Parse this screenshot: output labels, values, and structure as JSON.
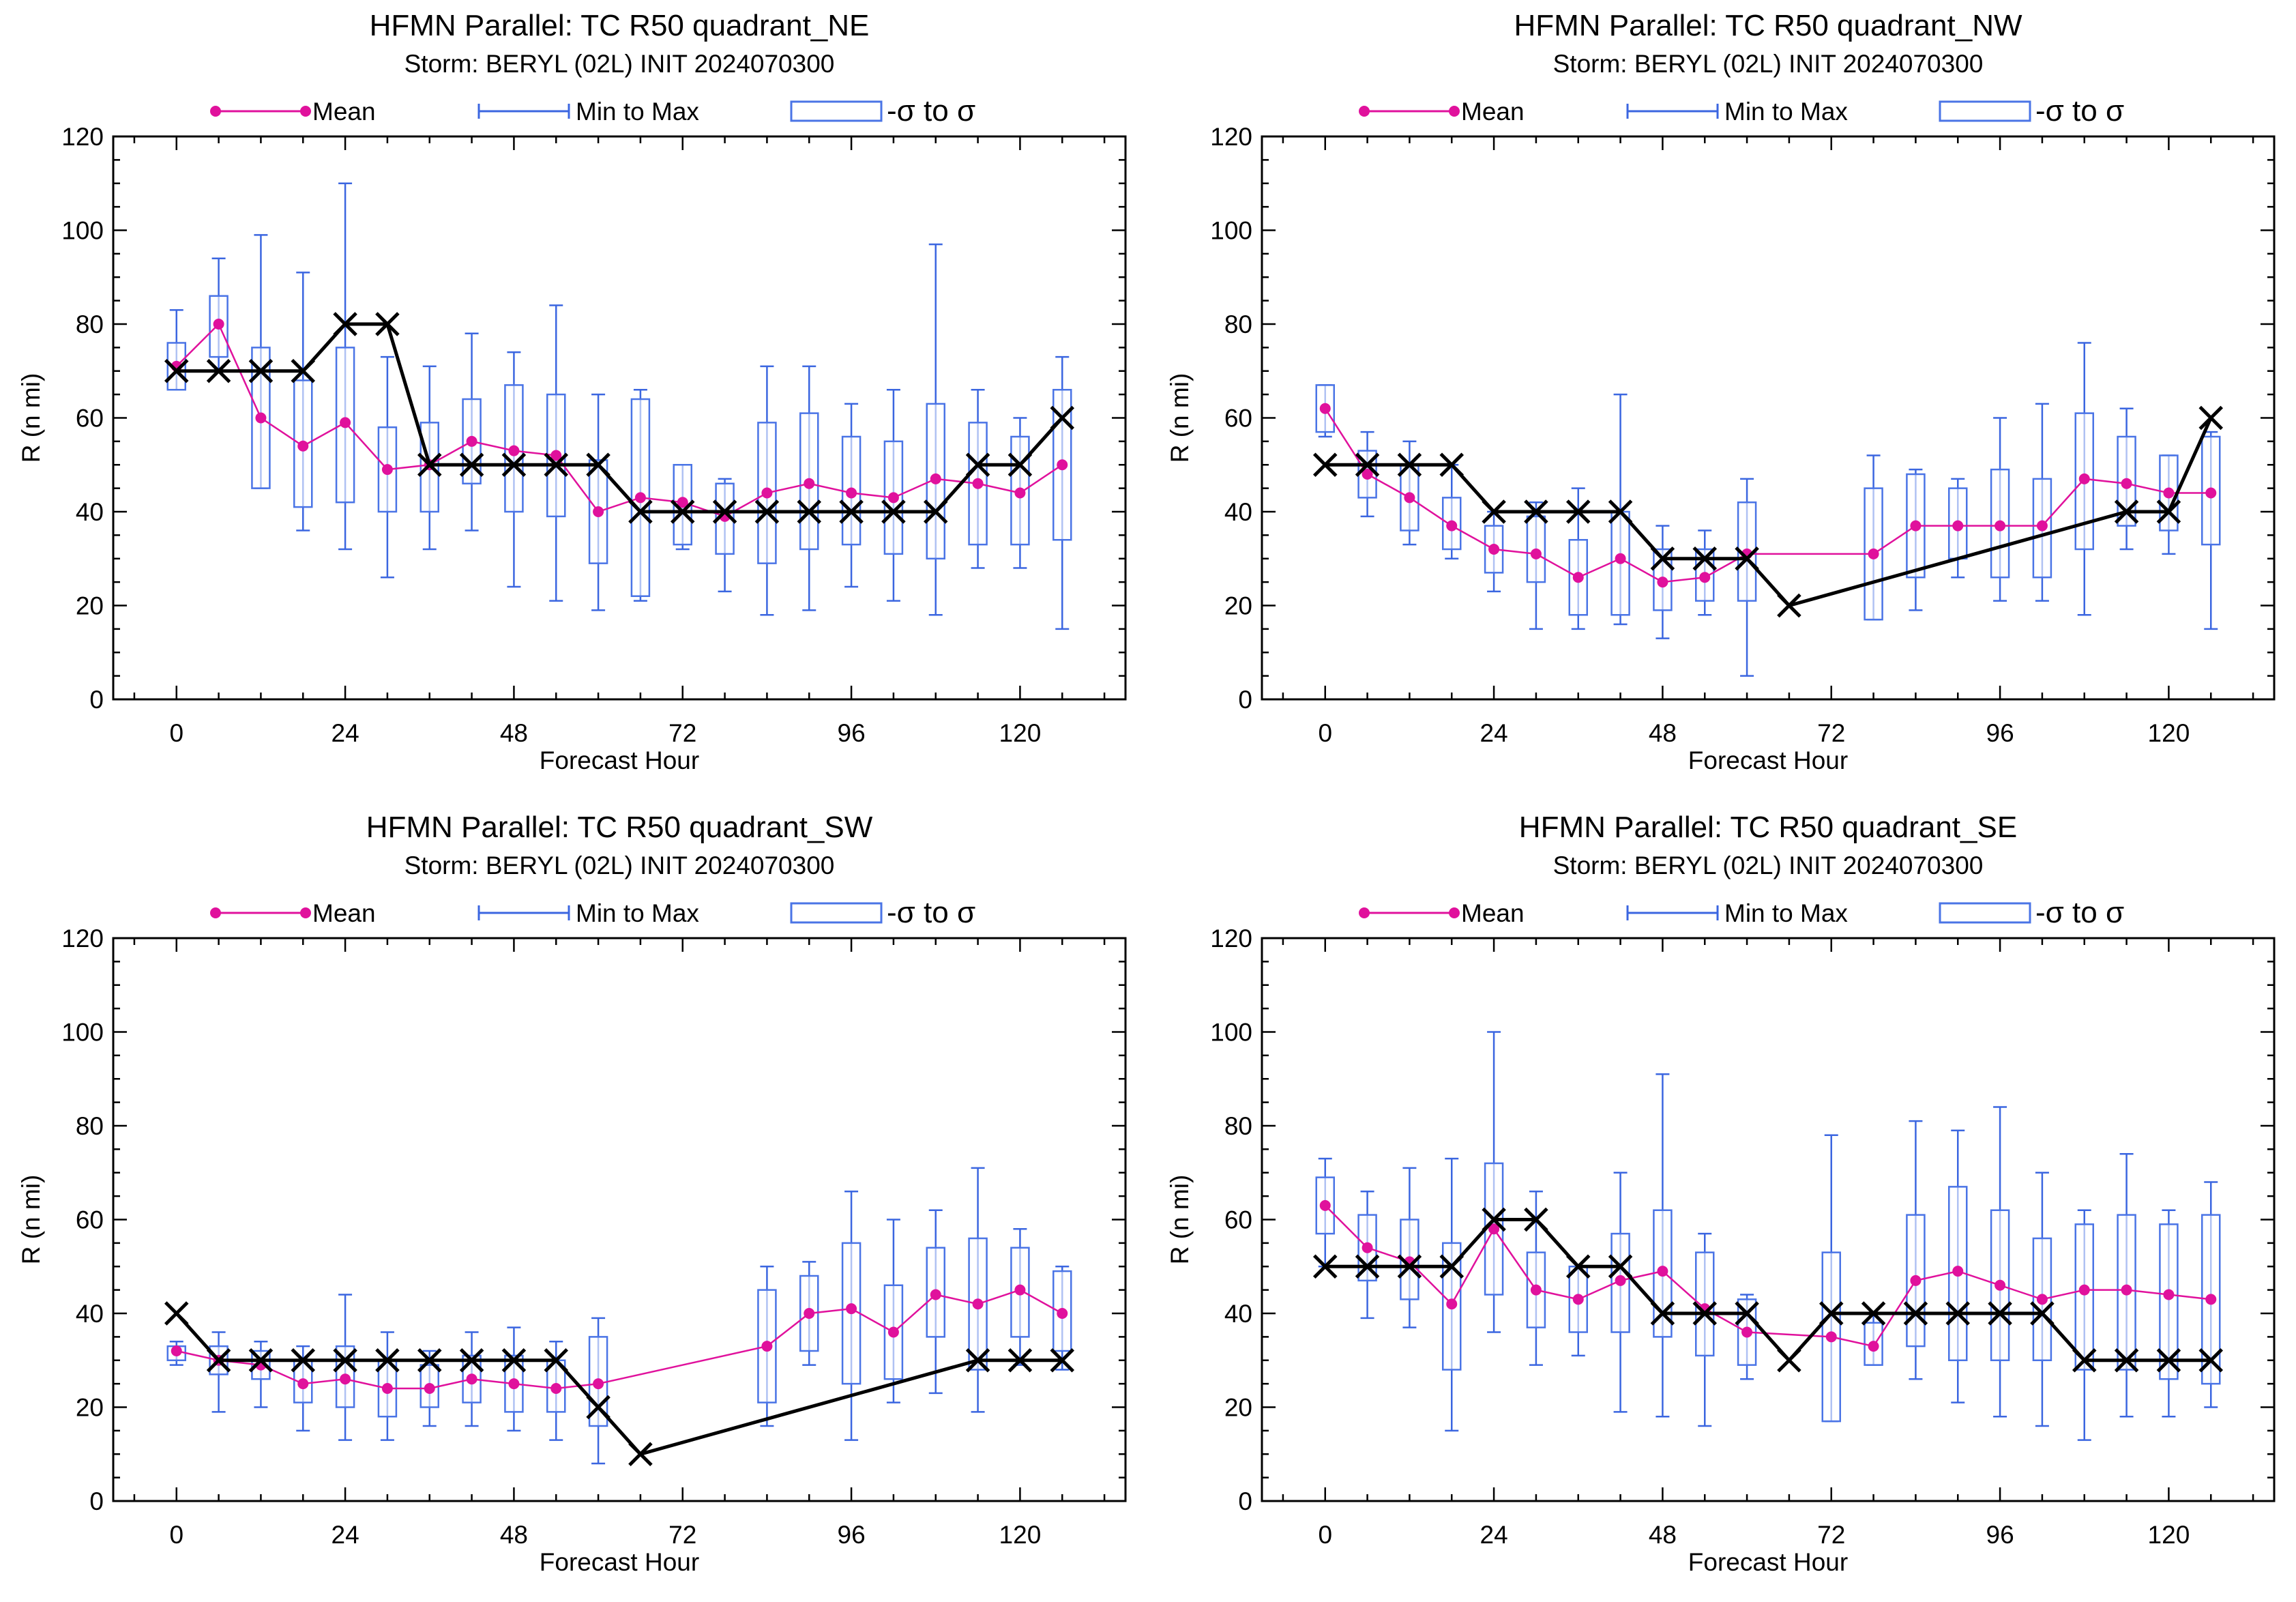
{
  "colors": {
    "mean": "#e0119c",
    "minmax": "#3b66e0",
    "box": "#4a74e6",
    "best_track": "#000000",
    "axes": "#000000"
  },
  "legend": {
    "mean": "Mean",
    "minmax": "Min to Max",
    "sigma": "-σ to σ"
  },
  "chart_data": [
    {
      "type": "box",
      "title": "HFMN Parallel: TC  R50 quadrant_NE",
      "subtitle": "Storm: BERYL (02L) INIT 2024070300",
      "xlabel": "Forecast Hour",
      "ylabel": "R (n mi)",
      "xlim": [
        -9,
        135
      ],
      "ylim": [
        0,
        120
      ],
      "xticks": [
        0,
        24,
        48,
        72,
        96,
        120
      ],
      "yticks": [
        0,
        20,
        40,
        60,
        80,
        100,
        120
      ],
      "stats": [
        {
          "x": 0,
          "mean": 71,
          "min": 66,
          "max": 83,
          "lo": 66,
          "hi": 76
        },
        {
          "x": 6,
          "mean": 80,
          "min": 70,
          "max": 94,
          "lo": 73,
          "hi": 86
        },
        {
          "x": 12,
          "mean": 60,
          "min": 45,
          "max": 99,
          "lo": 45,
          "hi": 75
        },
        {
          "x": 18,
          "mean": 54,
          "min": 36,
          "max": 91,
          "lo": 41,
          "hi": 68
        },
        {
          "x": 24,
          "mean": 59,
          "min": 32,
          "max": 110,
          "lo": 42,
          "hi": 75
        },
        {
          "x": 30,
          "mean": 49,
          "min": 26,
          "max": 73,
          "lo": 40,
          "hi": 58
        },
        {
          "x": 36,
          "mean": 50,
          "min": 32,
          "max": 71,
          "lo": 40,
          "hi": 59
        },
        {
          "x": 42,
          "mean": 55,
          "min": 36,
          "max": 78,
          "lo": 46,
          "hi": 64
        },
        {
          "x": 48,
          "mean": 53,
          "min": 24,
          "max": 74,
          "lo": 40,
          "hi": 67
        },
        {
          "x": 54,
          "mean": 52,
          "min": 21,
          "max": 84,
          "lo": 39,
          "hi": 65
        },
        {
          "x": 60,
          "mean": 40,
          "min": 19,
          "max": 65,
          "lo": 29,
          "hi": 51
        },
        {
          "x": 66,
          "mean": 43,
          "min": 21,
          "max": 66,
          "lo": 22,
          "hi": 64
        },
        {
          "x": 72,
          "mean": 42,
          "min": 32,
          "max": 50,
          "lo": 33,
          "hi": 50
        },
        {
          "x": 78,
          "mean": 39,
          "min": 23,
          "max": 47,
          "lo": 31,
          "hi": 46
        },
        {
          "x": 84,
          "mean": 44,
          "min": 18,
          "max": 71,
          "lo": 29,
          "hi": 59
        },
        {
          "x": 90,
          "mean": 46,
          "min": 19,
          "max": 71,
          "lo": 32,
          "hi": 61
        },
        {
          "x": 96,
          "mean": 44,
          "min": 24,
          "max": 63,
          "lo": 33,
          "hi": 56
        },
        {
          "x": 102,
          "mean": 43,
          "min": 21,
          "max": 66,
          "lo": 31,
          "hi": 55
        },
        {
          "x": 108,
          "mean": 47,
          "min": 18,
          "max": 97,
          "lo": 30,
          "hi": 63
        },
        {
          "x": 114,
          "mean": 46,
          "min": 28,
          "max": 66,
          "lo": 33,
          "hi": 59
        },
        {
          "x": 120,
          "mean": 44,
          "min": 28,
          "max": 60,
          "lo": 33,
          "hi": 56
        },
        {
          "x": 126,
          "mean": 50,
          "min": 15,
          "max": 73,
          "lo": 34,
          "hi": 66
        }
      ],
      "best_track": [
        {
          "x": 0,
          "y": 70
        },
        {
          "x": 6,
          "y": 70
        },
        {
          "x": 12,
          "y": 70
        },
        {
          "x": 18,
          "y": 70
        },
        {
          "x": 24,
          "y": 80
        },
        {
          "x": 30,
          "y": 80
        },
        {
          "x": 36,
          "y": 50
        },
        {
          "x": 42,
          "y": 50
        },
        {
          "x": 48,
          "y": 50
        },
        {
          "x": 54,
          "y": 50
        },
        {
          "x": 60,
          "y": 50
        },
        {
          "x": 66,
          "y": 40
        },
        {
          "x": 72,
          "y": 40
        },
        {
          "x": 78,
          "y": 40
        },
        {
          "x": 84,
          "y": 40
        },
        {
          "x": 90,
          "y": 40
        },
        {
          "x": 96,
          "y": 40
        },
        {
          "x": 102,
          "y": 40
        },
        {
          "x": 108,
          "y": 40
        },
        {
          "x": 114,
          "y": 50
        },
        {
          "x": 120,
          "y": 50
        },
        {
          "x": 126,
          "y": 60
        }
      ]
    },
    {
      "type": "box",
      "title": "HFMN Parallel: TC  R50 quadrant_NW",
      "subtitle": "Storm: BERYL (02L) INIT 2024070300",
      "xlabel": "Forecast Hour",
      "ylabel": "R (n mi)",
      "xlim": [
        -9,
        135
      ],
      "ylim": [
        0,
        120
      ],
      "xticks": [
        0,
        24,
        48,
        72,
        96,
        120
      ],
      "yticks": [
        0,
        20,
        40,
        60,
        80,
        100,
        120
      ],
      "stats": [
        {
          "x": 0,
          "mean": 62,
          "min": 56,
          "max": 67,
          "lo": 57,
          "hi": 67
        },
        {
          "x": 6,
          "mean": 48,
          "min": 39,
          "max": 57,
          "lo": 43,
          "hi": 53
        },
        {
          "x": 12,
          "mean": 43,
          "min": 33,
          "max": 55,
          "lo": 36,
          "hi": 50
        },
        {
          "x": 18,
          "mean": 37,
          "min": 30,
          "max": 50,
          "lo": 32,
          "hi": 43
        },
        {
          "x": 24,
          "mean": 32,
          "min": 23,
          "max": 40,
          "lo": 27,
          "hi": 37
        },
        {
          "x": 30,
          "mean": 31,
          "min": 15,
          "max": 42,
          "lo": 25,
          "hi": 39
        },
        {
          "x": 36,
          "mean": 26,
          "min": 15,
          "max": 45,
          "lo": 18,
          "hi": 34
        },
        {
          "x": 42,
          "mean": 30,
          "min": 16,
          "max": 65,
          "lo": 18,
          "hi": 40
        },
        {
          "x": 48,
          "mean": 25,
          "min": 13,
          "max": 37,
          "lo": 19,
          "hi": 32
        },
        {
          "x": 54,
          "mean": 26,
          "min": 18,
          "max": 36,
          "lo": 21,
          "hi": 32
        },
        {
          "x": 60,
          "mean": 31,
          "min": 5,
          "max": 47,
          "lo": 21,
          "hi": 42
        },
        {
          "x": 78,
          "mean": 31,
          "min": 17,
          "max": 52,
          "lo": 17,
          "hi": 45
        },
        {
          "x": 84,
          "mean": 37,
          "min": 19,
          "max": 49,
          "lo": 26,
          "hi": 48
        },
        {
          "x": 90,
          "mean": 37,
          "min": 26,
          "max": 47,
          "lo": 30,
          "hi": 45
        },
        {
          "x": 96,
          "mean": 37,
          "min": 21,
          "max": 60,
          "lo": 26,
          "hi": 49
        },
        {
          "x": 102,
          "mean": 37,
          "min": 21,
          "max": 63,
          "lo": 26,
          "hi": 47
        },
        {
          "x": 108,
          "mean": 47,
          "min": 18,
          "max": 76,
          "lo": 32,
          "hi": 61
        },
        {
          "x": 114,
          "mean": 46,
          "min": 32,
          "max": 62,
          "lo": 37,
          "hi": 56
        },
        {
          "x": 120,
          "mean": 44,
          "min": 31,
          "max": 52,
          "lo": 36,
          "hi": 52
        },
        {
          "x": 126,
          "mean": 44,
          "min": 15,
          "max": 57,
          "lo": 33,
          "hi": 56
        }
      ],
      "best_track": [
        {
          "x": 0,
          "y": 50
        },
        {
          "x": 6,
          "y": 50
        },
        {
          "x": 12,
          "y": 50
        },
        {
          "x": 18,
          "y": 50
        },
        {
          "x": 24,
          "y": 40
        },
        {
          "x": 30,
          "y": 40
        },
        {
          "x": 36,
          "y": 40
        },
        {
          "x": 42,
          "y": 40
        },
        {
          "x": 48,
          "y": 30
        },
        {
          "x": 54,
          "y": 30
        },
        {
          "x": 60,
          "y": 30
        },
        {
          "x": 66,
          "y": 20
        },
        {
          "x": 114,
          "y": 40
        },
        {
          "x": 120,
          "y": 40
        },
        {
          "x": 126,
          "y": 60
        }
      ]
    },
    {
      "type": "box",
      "title": "HFMN Parallel: TC  R50 quadrant_SW",
      "subtitle": "Storm: BERYL (02L) INIT 2024070300",
      "xlabel": "Forecast Hour",
      "ylabel": "R (n mi)",
      "xlim": [
        -9,
        135
      ],
      "ylim": [
        0,
        120
      ],
      "xticks": [
        0,
        24,
        48,
        72,
        96,
        120
      ],
      "yticks": [
        0,
        20,
        40,
        60,
        80,
        100,
        120
      ],
      "stats": [
        {
          "x": 0,
          "mean": 32,
          "min": 29,
          "max": 34,
          "lo": 30,
          "hi": 33
        },
        {
          "x": 6,
          "mean": 30,
          "min": 19,
          "max": 36,
          "lo": 27,
          "hi": 33
        },
        {
          "x": 12,
          "mean": 29,
          "min": 20,
          "max": 34,
          "lo": 26,
          "hi": 32
        },
        {
          "x": 18,
          "mean": 25,
          "min": 15,
          "max": 33,
          "lo": 21,
          "hi": 30
        },
        {
          "x": 24,
          "mean": 26,
          "min": 13,
          "max": 44,
          "lo": 20,
          "hi": 33
        },
        {
          "x": 30,
          "mean": 24,
          "min": 13,
          "max": 36,
          "lo": 18,
          "hi": 30
        },
        {
          "x": 36,
          "mean": 24,
          "min": 16,
          "max": 32,
          "lo": 20,
          "hi": 29
        },
        {
          "x": 42,
          "mean": 26,
          "min": 16,
          "max": 36,
          "lo": 21,
          "hi": 31
        },
        {
          "x": 48,
          "mean": 25,
          "min": 15,
          "max": 37,
          "lo": 19,
          "hi": 31
        },
        {
          "x": 54,
          "mean": 24,
          "min": 13,
          "max": 34,
          "lo": 19,
          "hi": 30
        },
        {
          "x": 60,
          "mean": 25,
          "min": 8,
          "max": 39,
          "lo": 16,
          "hi": 35
        },
        {
          "x": 84,
          "mean": 33,
          "min": 16,
          "max": 50,
          "lo": 21,
          "hi": 45
        },
        {
          "x": 90,
          "mean": 40,
          "min": 29,
          "max": 51,
          "lo": 32,
          "hi": 48
        },
        {
          "x": 96,
          "mean": 41,
          "min": 13,
          "max": 66,
          "lo": 25,
          "hi": 55
        },
        {
          "x": 102,
          "mean": 36,
          "min": 21,
          "max": 60,
          "lo": 26,
          "hi": 46
        },
        {
          "x": 108,
          "mean": 44,
          "min": 23,
          "max": 62,
          "lo": 35,
          "hi": 54
        },
        {
          "x": 114,
          "mean": 42,
          "min": 19,
          "max": 71,
          "lo": 28,
          "hi": 56
        },
        {
          "x": 120,
          "mean": 45,
          "min": 29,
          "max": 58,
          "lo": 35,
          "hi": 54
        },
        {
          "x": 126,
          "mean": 40,
          "min": 28,
          "max": 50,
          "lo": 32,
          "hi": 49
        }
      ],
      "best_track": [
        {
          "x": 0,
          "y": 40
        },
        {
          "x": 6,
          "y": 30
        },
        {
          "x": 12,
          "y": 30
        },
        {
          "x": 18,
          "y": 30
        },
        {
          "x": 24,
          "y": 30
        },
        {
          "x": 30,
          "y": 30
        },
        {
          "x": 36,
          "y": 30
        },
        {
          "x": 42,
          "y": 30
        },
        {
          "x": 48,
          "y": 30
        },
        {
          "x": 54,
          "y": 30
        },
        {
          "x": 60,
          "y": 20
        },
        {
          "x": 66,
          "y": 10
        },
        {
          "x": 114,
          "y": 30
        },
        {
          "x": 120,
          "y": 30
        },
        {
          "x": 126,
          "y": 30
        }
      ]
    },
    {
      "type": "box",
      "title": "HFMN Parallel: TC  R50 quadrant_SE",
      "subtitle": "Storm: BERYL (02L) INIT 2024070300",
      "xlabel": "Forecast Hour",
      "ylabel": "R (n mi)",
      "xlim": [
        -9,
        135
      ],
      "ylim": [
        0,
        120
      ],
      "xticks": [
        0,
        24,
        48,
        72,
        96,
        120
      ],
      "yticks": [
        0,
        20,
        40,
        60,
        80,
        100,
        120
      ],
      "stats": [
        {
          "x": 0,
          "mean": 63,
          "min": 50,
          "max": 73,
          "lo": 57,
          "hi": 69
        },
        {
          "x": 6,
          "mean": 54,
          "min": 39,
          "max": 66,
          "lo": 47,
          "hi": 61
        },
        {
          "x": 12,
          "mean": 51,
          "min": 37,
          "max": 71,
          "lo": 43,
          "hi": 60
        },
        {
          "x": 18,
          "mean": 42,
          "min": 15,
          "max": 73,
          "lo": 28,
          "hi": 55
        },
        {
          "x": 24,
          "mean": 58,
          "min": 36,
          "max": 100,
          "lo": 44,
          "hi": 72
        },
        {
          "x": 30,
          "mean": 45,
          "min": 29,
          "max": 66,
          "lo": 37,
          "hi": 53
        },
        {
          "x": 36,
          "mean": 43,
          "min": 31,
          "max": 50,
          "lo": 36,
          "hi": 50
        },
        {
          "x": 42,
          "mean": 47,
          "min": 19,
          "max": 70,
          "lo": 36,
          "hi": 57
        },
        {
          "x": 48,
          "mean": 49,
          "min": 18,
          "max": 91,
          "lo": 35,
          "hi": 62
        },
        {
          "x": 54,
          "mean": 41,
          "min": 16,
          "max": 57,
          "lo": 31,
          "hi": 53
        },
        {
          "x": 60,
          "mean": 36,
          "min": 26,
          "max": 44,
          "lo": 29,
          "hi": 43
        },
        {
          "x": 72,
          "mean": 35,
          "min": 17,
          "max": 78,
          "lo": 17,
          "hi": 53
        },
        {
          "x": 78,
          "mean": 33,
          "min": 29,
          "max": 40,
          "lo": 29,
          "hi": 38
        },
        {
          "x": 84,
          "mean": 47,
          "min": 26,
          "max": 81,
          "lo": 33,
          "hi": 61
        },
        {
          "x": 90,
          "mean": 49,
          "min": 21,
          "max": 79,
          "lo": 30,
          "hi": 67
        },
        {
          "x": 96,
          "mean": 46,
          "min": 18,
          "max": 84,
          "lo": 30,
          "hi": 62
        },
        {
          "x": 102,
          "mean": 43,
          "min": 16,
          "max": 70,
          "lo": 30,
          "hi": 56
        },
        {
          "x": 108,
          "mean": 45,
          "min": 13,
          "max": 62,
          "lo": 28,
          "hi": 59
        },
        {
          "x": 114,
          "mean": 45,
          "min": 18,
          "max": 74,
          "lo": 28,
          "hi": 61
        },
        {
          "x": 120,
          "mean": 44,
          "min": 18,
          "max": 62,
          "lo": 26,
          "hi": 59
        },
        {
          "x": 126,
          "mean": 43,
          "min": 20,
          "max": 68,
          "lo": 25,
          "hi": 61
        }
      ],
      "best_track": [
        {
          "x": 0,
          "y": 50
        },
        {
          "x": 6,
          "y": 50
        },
        {
          "x": 12,
          "y": 50
        },
        {
          "x": 18,
          "y": 50
        },
        {
          "x": 24,
          "y": 60
        },
        {
          "x": 30,
          "y": 60
        },
        {
          "x": 36,
          "y": 50
        },
        {
          "x": 42,
          "y": 50
        },
        {
          "x": 48,
          "y": 40
        },
        {
          "x": 54,
          "y": 40
        },
        {
          "x": 60,
          "y": 40
        },
        {
          "x": 66,
          "y": 30
        },
        {
          "x": 72,
          "y": 40
        },
        {
          "x": 78,
          "y": 40
        },
        {
          "x": 84,
          "y": 40
        },
        {
          "x": 90,
          "y": 40
        },
        {
          "x": 96,
          "y": 40
        },
        {
          "x": 102,
          "y": 40
        },
        {
          "x": 108,
          "y": 30
        },
        {
          "x": 114,
          "y": 30
        },
        {
          "x": 120,
          "y": 30
        },
        {
          "x": 126,
          "y": 30
        }
      ]
    }
  ]
}
